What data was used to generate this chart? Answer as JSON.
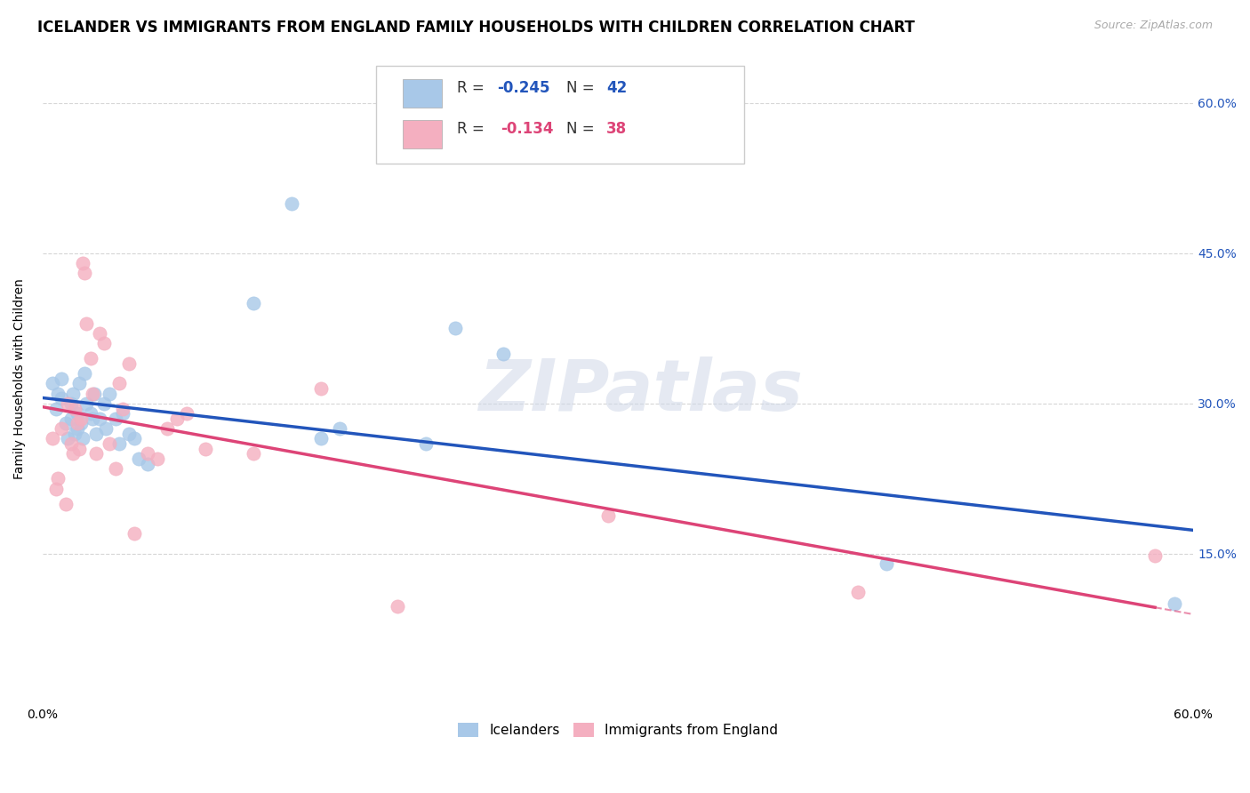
{
  "title": "ICELANDER VS IMMIGRANTS FROM ENGLAND FAMILY HOUSEHOLDS WITH CHILDREN CORRELATION CHART",
  "source": "Source: ZipAtlas.com",
  "ylabel": "Family Households with Children",
  "xlim": [
    0.0,
    0.6
  ],
  "ylim": [
    0.0,
    0.65
  ],
  "ytick_labels": [
    "15.0%",
    "30.0%",
    "45.0%",
    "60.0%"
  ],
  "ytick_values": [
    0.15,
    0.3,
    0.45,
    0.6
  ],
  "xtick_labels": [
    "0.0%",
    "",
    "",
    "",
    "60.0%"
  ],
  "xtick_values": [
    0.0,
    0.15,
    0.3,
    0.45,
    0.6
  ],
  "grid_color": "#cccccc",
  "background_color": "#ffffff",
  "watermark_text": "ZIPatlas",
  "icelanders_x": [
    0.005,
    0.007,
    0.008,
    0.01,
    0.01,
    0.012,
    0.013,
    0.015,
    0.015,
    0.016,
    0.017,
    0.018,
    0.018,
    0.019,
    0.02,
    0.021,
    0.022,
    0.023,
    0.025,
    0.026,
    0.027,
    0.028,
    0.03,
    0.032,
    0.033,
    0.035,
    0.038,
    0.04,
    0.042,
    0.045,
    0.048,
    0.05,
    0.055,
    0.11,
    0.13,
    0.145,
    0.155,
    0.2,
    0.215,
    0.24,
    0.44,
    0.59
  ],
  "icelanders_y": [
    0.32,
    0.295,
    0.31,
    0.305,
    0.325,
    0.28,
    0.265,
    0.3,
    0.285,
    0.31,
    0.27,
    0.29,
    0.275,
    0.32,
    0.28,
    0.265,
    0.33,
    0.3,
    0.29,
    0.285,
    0.31,
    0.27,
    0.285,
    0.3,
    0.275,
    0.31,
    0.285,
    0.26,
    0.29,
    0.27,
    0.265,
    0.245,
    0.24,
    0.4,
    0.5,
    0.265,
    0.275,
    0.26,
    0.375,
    0.35,
    0.14,
    0.1
  ],
  "england_x": [
    0.005,
    0.007,
    0.008,
    0.01,
    0.012,
    0.013,
    0.015,
    0.016,
    0.017,
    0.018,
    0.019,
    0.02,
    0.021,
    0.022,
    0.023,
    0.025,
    0.026,
    0.028,
    0.03,
    0.032,
    0.035,
    0.038,
    0.04,
    0.042,
    0.045,
    0.048,
    0.055,
    0.06,
    0.065,
    0.07,
    0.075,
    0.085,
    0.11,
    0.145,
    0.185,
    0.295,
    0.425,
    0.58
  ],
  "england_y": [
    0.265,
    0.215,
    0.225,
    0.275,
    0.2,
    0.3,
    0.26,
    0.25,
    0.295,
    0.28,
    0.255,
    0.285,
    0.44,
    0.43,
    0.38,
    0.345,
    0.31,
    0.25,
    0.37,
    0.36,
    0.26,
    0.235,
    0.32,
    0.295,
    0.34,
    0.17,
    0.25,
    0.245,
    0.275,
    0.285,
    0.29,
    0.255,
    0.25,
    0.315,
    0.098,
    0.188,
    0.112,
    0.148
  ],
  "icelander_color": "#a8c8e8",
  "england_color": "#f4afc0",
  "icelander_line_color": "#2255bb",
  "england_line_color": "#dd4477",
  "legend_label_icelander": "Icelanders",
  "legend_label_england": "Immigrants from England",
  "title_fontsize": 12,
  "axis_label_fontsize": 10,
  "tick_fontsize": 10,
  "legend_fontsize": 11
}
